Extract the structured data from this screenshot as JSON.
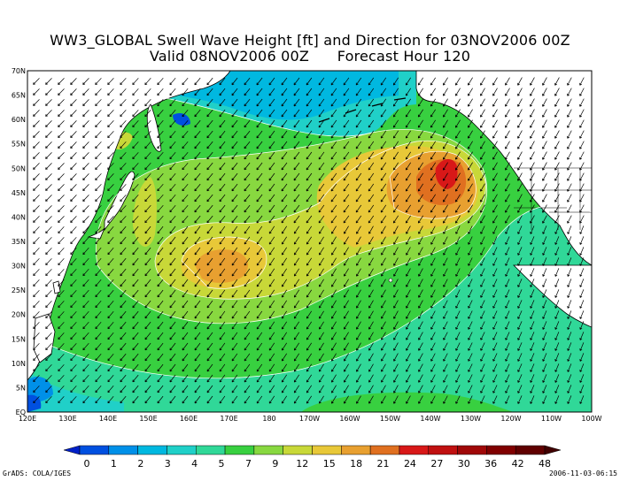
{
  "header": {
    "title_line1": "WW3_GLOBAL Swell Wave Height [ft] and Direction for 03NOV2006 00Z",
    "title_line2": "Valid 08NOV2006 00Z      Forecast Hour 120"
  },
  "map": {
    "lat_labels": [
      "EQ",
      "5N",
      "10N",
      "15N",
      "20N",
      "25N",
      "30N",
      "35N",
      "40N",
      "45N",
      "50N",
      "55N",
      "60N",
      "65N",
      "70N"
    ],
    "lon_labels": [
      "120E",
      "130E",
      "140E",
      "150E",
      "160E",
      "170E",
      "180",
      "170W",
      "160W",
      "150W",
      "140W",
      "130W",
      "120W",
      "110W",
      "100W"
    ],
    "lat_range": [
      0,
      70
    ],
    "lon_range": [
      120,
      260
    ]
  },
  "colorbar": {
    "levels": [
      "0",
      "1",
      "2",
      "3",
      "4",
      "5",
      "7",
      "9",
      "12",
      "15",
      "18",
      "21",
      "24",
      "27",
      "30",
      "36",
      "42",
      "48"
    ],
    "colors": [
      "#0020c8",
      "#0050e0",
      "#0090e8",
      "#00b8e0",
      "#20d0c8",
      "#30d898",
      "#38d040",
      "#88d840",
      "#c8d838",
      "#e8c838",
      "#e8a030",
      "#e07020",
      "#d81818",
      "#c01010",
      "#a00808",
      "#800000",
      "#600000",
      "#400000"
    ]
  },
  "footer": {
    "credit": "GrADS: COLA/IGES",
    "timestamp": "2006-11-03-06:15"
  }
}
